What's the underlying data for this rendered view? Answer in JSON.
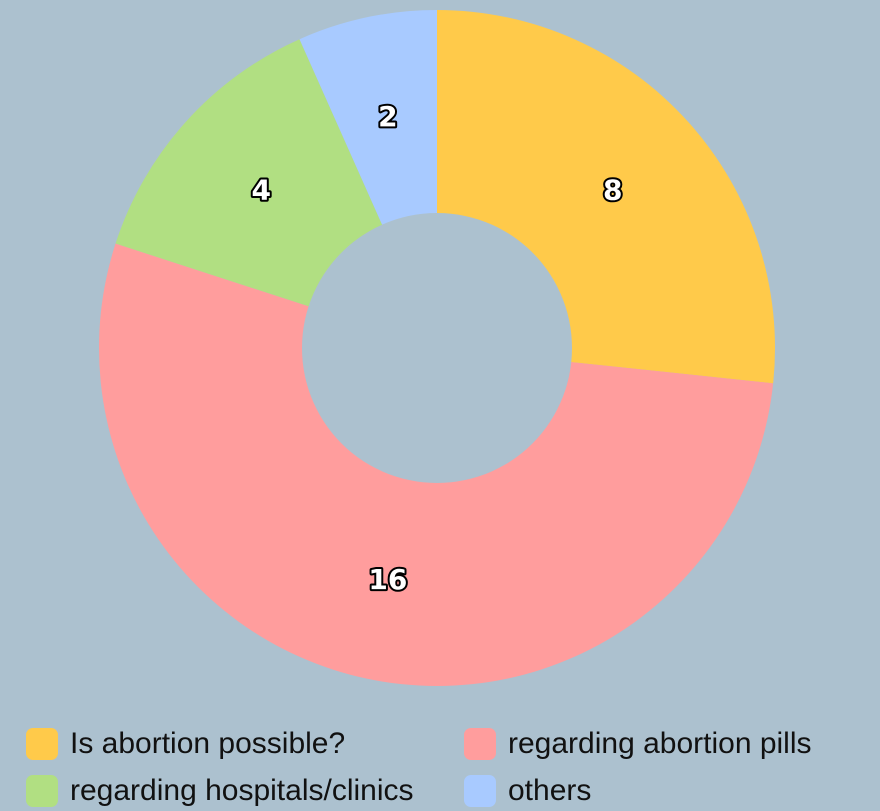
{
  "chart_data": {
    "type": "pie",
    "donut": true,
    "categories": [
      "Is abortion possible?",
      "regarding abortion pills",
      "regarding hospitals/clinics",
      "others"
    ],
    "values": [
      8,
      16,
      4,
      2
    ],
    "colors": [
      "#ffca4a",
      "#ff9d9d",
      "#b1df82",
      "#a8caff"
    ],
    "data_labels": [
      "8",
      "16",
      "4",
      "2"
    ],
    "legend": "bottom"
  },
  "legend": {
    "items": [
      {
        "label": "Is abortion possible?",
        "color": "#ffca4a"
      },
      {
        "label": "regarding abortion pills",
        "color": "#ff9d9d"
      },
      {
        "label": "regarding hospitals/clinics",
        "color": "#b1df82"
      },
      {
        "label": "others",
        "color": "#a8caff"
      }
    ]
  }
}
